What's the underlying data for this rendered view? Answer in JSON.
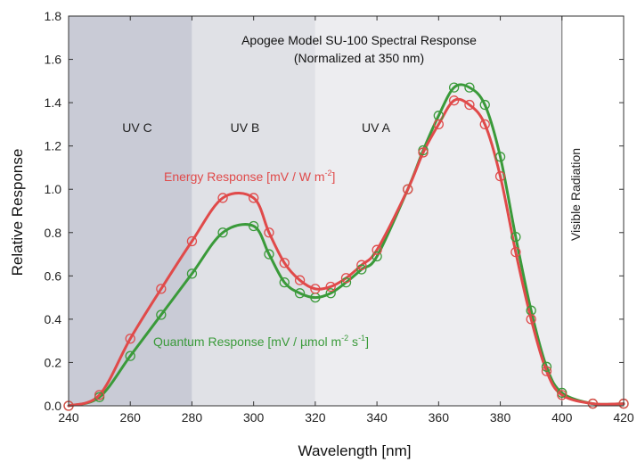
{
  "chart_data": {
    "type": "line",
    "title": "Apogee Model SU-100 Spectral Response",
    "subtitle": "(Normalized at 350 nm)",
    "xlabel": "Wavelength [nm]",
    "ylabel": "Relative Response",
    "xlim": [
      240,
      420
    ],
    "ylim": [
      0,
      1.8
    ],
    "xticks": [
      240,
      260,
      280,
      300,
      320,
      340,
      360,
      380,
      400,
      420
    ],
    "xtick_labels": [
      "240",
      "260",
      "280",
      "300",
      "320",
      "340",
      "360",
      "380",
      "400",
      "420"
    ],
    "yticks": [
      0,
      0.2,
      0.4,
      0.6,
      0.8,
      1.0,
      1.2,
      1.4,
      1.6,
      1.8
    ],
    "ytick_labels": [
      "0.0",
      "0.2",
      "0.4",
      "0.6",
      "0.8",
      "1.0",
      "1.2",
      "1.4",
      "1.6",
      "1.8"
    ],
    "grid": false,
    "regions": [
      {
        "label": "UV C",
        "x_start": 240,
        "x_end": 280,
        "color": "#c9cbd6"
      },
      {
        "label": "UV B",
        "x_start": 280,
        "x_end": 320,
        "color": "#e0e1e6"
      },
      {
        "label": "UV A",
        "x_start": 320,
        "x_end": 400,
        "color": "#ededf0"
      },
      {
        "label": "Visible Radiation",
        "x_start": 400,
        "x_end": 420,
        "color": "#ffffff"
      }
    ],
    "series": [
      {
        "name": "Energy Response [mV / W m-2]",
        "name_main": "Energy Response [mV / W m",
        "name_sup": "-2",
        "name_end": "]",
        "color": "#e04a4a",
        "x": [
          240,
          250,
          260,
          270,
          280,
          290,
          300,
          305,
          310,
          315,
          320,
          325,
          330,
          335,
          340,
          350,
          355,
          360,
          365,
          370,
          375,
          380,
          385,
          390,
          395,
          400,
          410,
          420
        ],
        "y": [
          0.0,
          0.05,
          0.31,
          0.54,
          0.76,
          0.96,
          0.96,
          0.8,
          0.66,
          0.58,
          0.54,
          0.55,
          0.59,
          0.65,
          0.72,
          1.0,
          1.17,
          1.3,
          1.41,
          1.39,
          1.3,
          1.06,
          0.71,
          0.4,
          0.16,
          0.05,
          0.01,
          0.01
        ]
      },
      {
        "name": "Quantum Response [mV / µmol m-2 s-1]",
        "name_main": "Quantum Response [mV / µmol m",
        "name_sup": "-2",
        "name_mid": " s",
        "name_sup2": "-1",
        "name_end": "]",
        "color": "#3a9a3a",
        "x": [
          240,
          250,
          260,
          270,
          280,
          290,
          300,
          305,
          310,
          315,
          320,
          325,
          330,
          335,
          340,
          350,
          355,
          360,
          365,
          370,
          375,
          380,
          385,
          390,
          395,
          400,
          410,
          420
        ],
        "y": [
          0.0,
          0.04,
          0.23,
          0.42,
          0.61,
          0.8,
          0.83,
          0.7,
          0.57,
          0.52,
          0.5,
          0.52,
          0.57,
          0.63,
          0.69,
          1.0,
          1.18,
          1.34,
          1.47,
          1.47,
          1.39,
          1.15,
          0.78,
          0.44,
          0.18,
          0.06,
          0.01,
          0.01
        ]
      }
    ]
  }
}
